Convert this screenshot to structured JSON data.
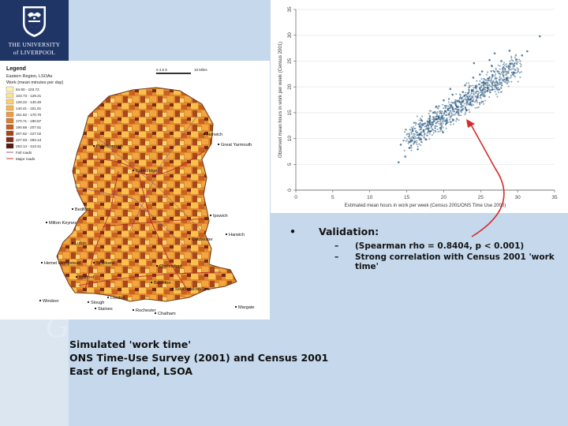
{
  "logo": {
    "line1": "THE UNIVERSITY",
    "line2": "of LIVERPOOL"
  },
  "background_script": "G",
  "map": {
    "legend": {
      "title": "Legend",
      "subtitle": "Eastern Region, LSOAs",
      "variable": "Work (mean minutes per day)",
      "scale_label": "0  4.5  9",
      "scale_unit": "18 Miles",
      "classes": [
        {
          "label": "84.90 - 103.72",
          "color": "#fdf3b2"
        },
        {
          "label": "103.73 - 129.21",
          "color": "#fde38f"
        },
        {
          "label": "129.22 - 140.40",
          "color": "#fdd06d"
        },
        {
          "label": "140.41 - 151.61",
          "color": "#f9b54f"
        },
        {
          "label": "151.62 - 170.70",
          "color": "#f29a3e"
        },
        {
          "label": "170.71 - 190.67",
          "color": "#e07c2c"
        },
        {
          "label": "190.68 - 207.61",
          "color": "#c85f23"
        },
        {
          "label": "207.62 - 227.02",
          "color": "#a8451b"
        },
        {
          "label": "227.03 - 253.13",
          "color": "#842c15"
        },
        {
          "label": "253.14 - 313.41",
          "color": "#5a1a0e"
        }
      ],
      "roads": [
        {
          "label": "Full roads",
          "color": "#9a5a9a"
        },
        {
          "label": "Major roads",
          "color": "#c0392b"
        }
      ]
    },
    "towns": [
      "Norwich",
      "Peterborough",
      "Great Yarmouth",
      "Cambridge",
      "Bedford",
      "Ipswich",
      "Milton Keynes",
      "Harwich",
      "Colchester",
      "Luton",
      "Hemel Hempstead",
      "St Albans",
      "Chelmsford",
      "Watford",
      "Basildon",
      "Southend-on-Sea",
      "Windsor",
      "Slough",
      "London",
      "Staines",
      "Rochester",
      "Chatham",
      "Margate"
    ]
  },
  "chart_data": {
    "type": "scatter",
    "title": "",
    "xlabel": "Estimated mean hours in work per week (Census 2001/ONS Time Use 2000)",
    "ylabel": "Observed mean hours in work per week (Census 2001)",
    "xlim": [
      0,
      35
    ],
    "ylim": [
      0,
      35
    ],
    "xticks": [
      "0",
      "5",
      "10",
      "15",
      "20",
      "25",
      "30",
      "35"
    ],
    "yticks": [
      "0",
      "5",
      "10",
      "15",
      "20",
      "25",
      "30",
      "35"
    ],
    "grid": true,
    "point_color": "#24567e",
    "points": [
      [
        14.8,
        6.5
      ],
      [
        15.4,
        8.2
      ],
      [
        16.1,
        9.4
      ],
      [
        16.8,
        10.8
      ],
      [
        17.3,
        11.6
      ],
      [
        17.9,
        12.5
      ],
      [
        18.4,
        13.1
      ],
      [
        18.9,
        13.8
      ],
      [
        19.3,
        14.2
      ],
      [
        19.7,
        14.9
      ],
      [
        20.2,
        15.3
      ],
      [
        20.6,
        15.8
      ],
      [
        21.0,
        16.4
      ],
      [
        21.5,
        16.9
      ],
      [
        21.9,
        17.2
      ],
      [
        22.4,
        17.8
      ],
      [
        22.8,
        18.3
      ],
      [
        23.3,
        18.8
      ],
      [
        23.8,
        19.4
      ],
      [
        24.3,
        19.9
      ],
      [
        24.8,
        20.5
      ],
      [
        25.4,
        21.0
      ],
      [
        26.0,
        21.6
      ],
      [
        26.6,
        22.3
      ],
      [
        27.3,
        23.0
      ],
      [
        28.1,
        23.8
      ],
      [
        29.0,
        24.5
      ],
      [
        29.8,
        25.3
      ],
      [
        30.6,
        26.1
      ],
      [
        17.0,
        13.5
      ],
      [
        18.2,
        11.4
      ],
      [
        19.0,
        16.2
      ],
      [
        20.4,
        13.0
      ],
      [
        21.2,
        18.5
      ],
      [
        22.0,
        14.9
      ],
      [
        22.9,
        20.3
      ],
      [
        23.5,
        16.6
      ],
      [
        24.0,
        21.8
      ],
      [
        24.6,
        18.0
      ],
      [
        25.2,
        23.0
      ],
      [
        25.9,
        19.2
      ],
      [
        26.5,
        24.1
      ],
      [
        27.0,
        20.4
      ],
      [
        27.8,
        25.0
      ],
      [
        28.5,
        21.6
      ],
      [
        15.8,
        11.5
      ],
      [
        16.5,
        7.9
      ],
      [
        19.6,
        12.1
      ],
      [
        20.9,
        19.6
      ],
      [
        23.1,
        15.5
      ],
      [
        26.2,
        25.2
      ],
      [
        29.5,
        22.8
      ],
      [
        31.3,
        26.9
      ],
      [
        33.0,
        29.8
      ],
      [
        13.9,
        5.4
      ],
      [
        14.2,
        8.8
      ],
      [
        20.0,
        17.4
      ],
      [
        21.8,
        16.1
      ],
      [
        22.6,
        19.0
      ],
      [
        23.9,
        17.3
      ],
      [
        24.9,
        22.4
      ],
      [
        25.6,
        20.7
      ],
      [
        18.6,
        15.0
      ],
      [
        17.6,
        9.8
      ],
      [
        24.1,
        24.6
      ],
      [
        19.9,
        11.2
      ],
      [
        26.9,
        26.5
      ],
      [
        28.9,
        27.0
      ],
      [
        21.3,
        13.6
      ],
      [
        27.5,
        19.5
      ]
    ]
  },
  "bullets": {
    "marker": "•",
    "heading": "Validation:",
    "items": [
      {
        "dash": "–",
        "text": "(Spearman rho = 0.8404, p < 0.001)"
      },
      {
        "dash": "–",
        "text": "Strong correlation with Census 2001 'work time'"
      }
    ]
  },
  "caption": {
    "line1": "Simulated 'work time'",
    "line2": "ONS Time-Use Survey (2001) and Census 2001",
    "line3": "East of England, LSOA"
  },
  "colors": {
    "background": "#c5d8ec",
    "logo_bg": "#1f3566",
    "arrow": "#d42a2a"
  }
}
